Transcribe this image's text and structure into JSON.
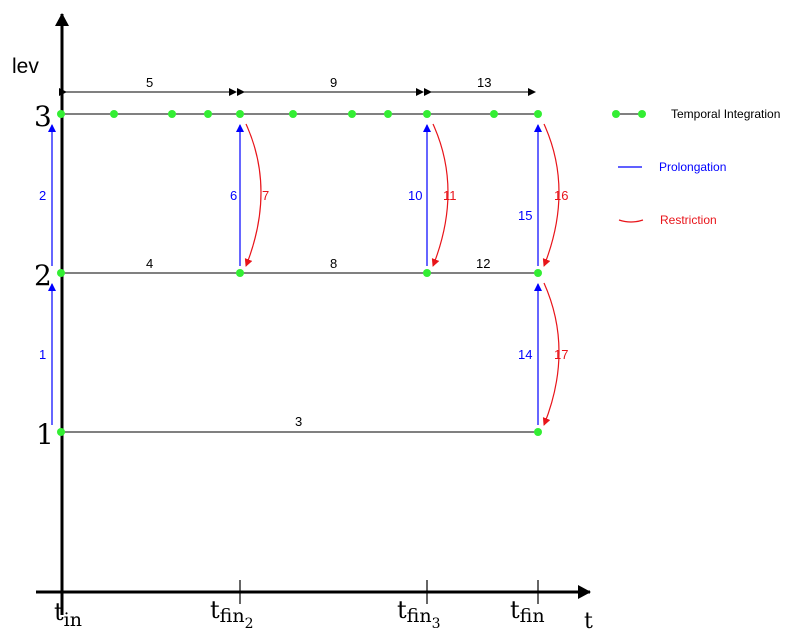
{
  "axes": {
    "y_label": "lev",
    "x_label": "t",
    "level_labels": [
      "1",
      "2",
      "3"
    ]
  },
  "time_labels": [
    {
      "main": "t",
      "sub": "in"
    },
    {
      "main": "t",
      "sub": "fin",
      "subsub": "2"
    },
    {
      "main": "t",
      "sub": "fin",
      "subsub": "3"
    },
    {
      "main": "t",
      "sub": "fin"
    }
  ],
  "steps": {
    "prolong_1": "1",
    "prolong_2": "2",
    "integ_3": "3",
    "integ_4": "4",
    "span_5": "5",
    "prolong_6": "6",
    "restrict_7": "7",
    "integ_8": "8",
    "span_9": "9",
    "prolong_10": "10",
    "restrict_11": "11",
    "integ_12": "12",
    "span_13": "13",
    "prolong_14": "14",
    "prolong_15": "15",
    "restrict_16": "16",
    "restrict_17": "17"
  },
  "legend": {
    "integration": "Temporal Integration",
    "prolongation": "Prolongation",
    "restriction": "Restriction"
  },
  "colors": {
    "prolongation": "#0000ff",
    "restriction": "#e8141a",
    "node": "#33ee33",
    "axis": "#000000"
  }
}
